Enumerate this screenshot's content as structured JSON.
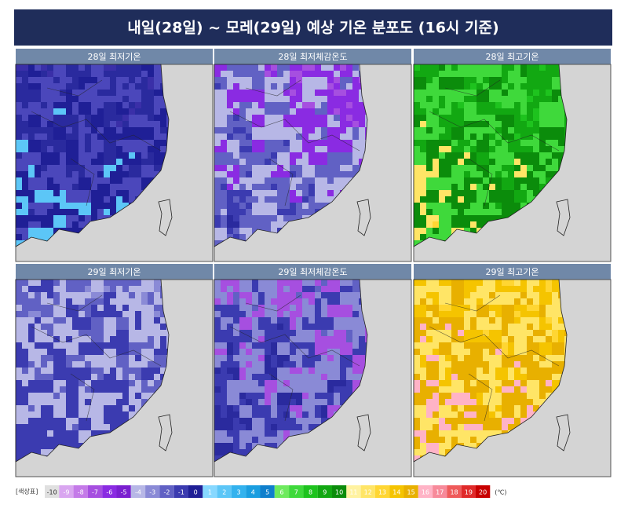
{
  "header": {
    "title": "내일(28일) ~ 모레(29일) 예상 기온 분포도 (16시 기준)"
  },
  "panels": [
    {
      "label": "28일 최저기온",
      "colors": [
        "#3a2fa8",
        "#2a2a9e",
        "#4b47bb",
        "#1f1f96",
        "#5cc6f7",
        "#87d8ff"
      ]
    },
    {
      "label": "28일 최저체감온도",
      "colors": [
        "#a64fe0",
        "#8a2be2",
        "#b7b7e6",
        "#6161c4",
        "#3b3bb0",
        "#2a2a9e"
      ]
    },
    {
      "label": "28일 최고기온",
      "colors": [
        "#1ec31e",
        "#12a812",
        "#3fd93b",
        "#0b8c0b",
        "#ffe566",
        "#ffd633"
      ]
    },
    {
      "label": "29일 최저기온",
      "colors": [
        "#8a8ad6",
        "#6161c4",
        "#b7b7e6",
        "#3b3bb0",
        "#3b3bb0",
        "#5cc6f7"
      ]
    },
    {
      "label": "29일 최저체감온도",
      "colors": [
        "#6161c4",
        "#a64fe0",
        "#8a8ad6",
        "#3b3bb0",
        "#2a2a9e",
        "#33b2ee"
      ]
    },
    {
      "label": "29일 최고기온",
      "colors": [
        "#ffd633",
        "#f5c400",
        "#ffe566",
        "#e8b000",
        "#ffb3c6",
        "#f5c400"
      ]
    }
  ],
  "legend": {
    "label": "[색상표]",
    "unit": "(℃)",
    "items": [
      {
        "value": -10,
        "color": "#e0e0e0"
      },
      {
        "value": -9,
        "color": "#d9a6f0"
      },
      {
        "value": -8,
        "color": "#c47ae8"
      },
      {
        "value": -7,
        "color": "#a64fe0"
      },
      {
        "value": -6,
        "color": "#8a2be2"
      },
      {
        "value": -5,
        "color": "#7a1fd0"
      },
      {
        "value": -4,
        "color": "#b7b7e6"
      },
      {
        "value": -3,
        "color": "#8a8ad6"
      },
      {
        "value": -2,
        "color": "#6161c4"
      },
      {
        "value": -1,
        "color": "#3b3bb0"
      },
      {
        "value": 0,
        "color": "#1f1f96"
      },
      {
        "value": 1,
        "color": "#87d8ff"
      },
      {
        "value": 2,
        "color": "#5cc6f7"
      },
      {
        "value": 3,
        "color": "#33b2ee"
      },
      {
        "value": 4,
        "color": "#1a9ee0"
      },
      {
        "value": 5,
        "color": "#0f7fcc"
      },
      {
        "value": 6,
        "color": "#6eea5e"
      },
      {
        "value": 7,
        "color": "#3fd93b"
      },
      {
        "value": 8,
        "color": "#1ec31e"
      },
      {
        "value": 9,
        "color": "#12a812"
      },
      {
        "value": 10,
        "color": "#0b8c0b"
      },
      {
        "value": 11,
        "color": "#fff2a0"
      },
      {
        "value": 12,
        "color": "#ffe566"
      },
      {
        "value": 13,
        "color": "#ffd633"
      },
      {
        "value": 14,
        "color": "#f5c400"
      },
      {
        "value": 15,
        "color": "#e8b000"
      },
      {
        "value": 16,
        "color": "#ffb3c6"
      },
      {
        "value": 17,
        "color": "#f78a9a"
      },
      {
        "value": 18,
        "color": "#ef5a5a"
      },
      {
        "value": 19,
        "color": "#e02a2a"
      },
      {
        "value": 20,
        "color": "#c80000"
      }
    ]
  }
}
